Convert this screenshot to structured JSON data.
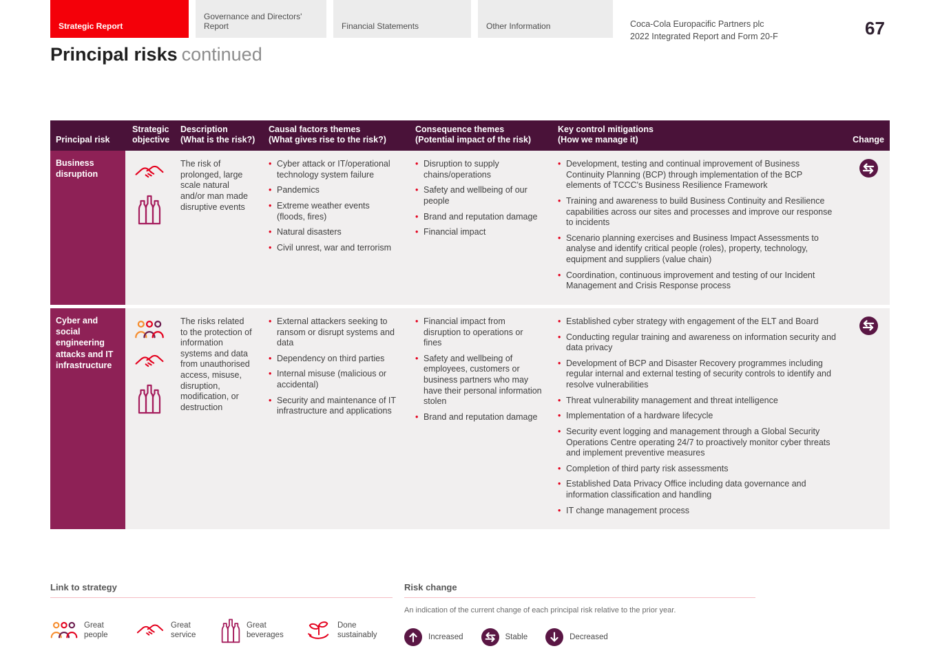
{
  "header": {
    "tabs": [
      {
        "label": "Strategic Report",
        "active": true
      },
      {
        "label": "Governance and Directors' Report",
        "active": false
      },
      {
        "label": "Financial Statements",
        "active": false
      },
      {
        "label": "Other Information",
        "active": false
      }
    ],
    "brand_line1": "Coca-Cola Europacific Partners plc",
    "brand_line2": "2022 Integrated Report and Form 20-F",
    "page_number": "67"
  },
  "title": {
    "main": "Principal risks",
    "suffix": "continued"
  },
  "colors": {
    "accent_red": "#f40009",
    "bullet_red": "#e4001d",
    "table_header": "#4a1239",
    "risk_label": "#8e2156",
    "change_circle": "#5a1644",
    "cell_bg": "#f1efef"
  },
  "table": {
    "columns": [
      {
        "line1": "Principal risk",
        "line2": ""
      },
      {
        "line1": "Strategic",
        "line2": "objective"
      },
      {
        "line1": "Description",
        "line2": "(What is the risk?)"
      },
      {
        "line1": "Causal factors themes",
        "line2": "(What gives rise to the risk?)"
      },
      {
        "line1": "Consequence themes",
        "line2": "(Potential impact of the risk)"
      },
      {
        "line1": "Key control mitigations",
        "line2": "(How we manage it)"
      },
      {
        "line1": "Change",
        "line2": ""
      }
    ],
    "rows": [
      {
        "risk": "Business disruption",
        "objective_icons": [
          "handshake-icon",
          "beverages-icon"
        ],
        "description": "The risk of prolonged, large scale natural and/or man made disruptive events",
        "causal_factors": [
          "Cyber attack or IT/operational technology system failure",
          "Pandemics",
          "Extreme weather events (floods, fires)",
          "Natural disasters",
          "Civil unrest, war and terrorism"
        ],
        "consequences": [
          "Disruption to supply chains/operations",
          "Safety and wellbeing of our people",
          "Brand and reputation damage",
          "Financial impact"
        ],
        "mitigations": [
          "Development, testing and continual improvement of Business Continuity Planning (BCP) through implementation of the BCP elements of TCCC's Business Resilience Framework",
          "Training and awareness to build Business Continuity and Resilience capabilities across our sites and processes and improve our response to incidents",
          "Scenario planning exercises and Business Impact Assessments to analyse and identify critical people (roles), property, technology, equipment and suppliers (value chain)",
          "Coordination, continuous improvement and testing of our Incident Management and Crisis Response process"
        ],
        "change": "Stable"
      },
      {
        "risk": "Cyber and social engineering attacks and IT infrastructure",
        "objective_icons": [
          "people-icon",
          "handshake-icon",
          "beverages-icon"
        ],
        "description": "The risks related to the protection of information systems and data from unauthorised access, misuse, disruption, modification, or destruction",
        "causal_factors": [
          "External attackers seeking to ransom or disrupt systems and data",
          "Dependency on third parties",
          "Internal misuse (malicious or accidental)",
          "Security and maintenance of IT infrastructure and applications"
        ],
        "consequences": [
          "Financial impact from disruption to operations or fines",
          "Safety and wellbeing of employees, customers or business partners who may have their personal information stolen",
          "Brand and reputation damage"
        ],
        "mitigations": [
          "Established cyber strategy with engagement of the ELT and Board",
          "Conducting regular training and awareness on information security and data privacy",
          "Development of BCP and Disaster Recovery programmes including regular internal and external testing of security controls to identify and resolve vulnerabilities",
          "Threat vulnerability management and threat intelligence",
          "Implementation of a hardware lifecycle",
          "Security event logging and management through a Global Security Operations Centre operating 24/7 to proactively monitor cyber threats and implement preventive measures",
          "Completion of third party risk assessments",
          "Established Data Privacy Office including data governance and information classification and handling",
          "IT change management process"
        ],
        "change": "Stable"
      }
    ]
  },
  "footer": {
    "strategy": {
      "title": "Link to strategy",
      "items": [
        {
          "icon": "people-icon",
          "label": "Great people"
        },
        {
          "icon": "handshake-icon",
          "label": "Great service"
        },
        {
          "icon": "beverages-icon",
          "label": "Great beverages"
        },
        {
          "icon": "seedling-icon",
          "label": "Done sustainably"
        }
      ]
    },
    "risk_change": {
      "title": "Risk change",
      "note": "An indication of the current change of each principal risk relative to the prior year.",
      "items": [
        {
          "icon": "increased-icon",
          "label": "Increased"
        },
        {
          "icon": "stable-icon",
          "label": "Stable"
        },
        {
          "icon": "decreased-icon",
          "label": "Decreased"
        }
      ]
    }
  }
}
